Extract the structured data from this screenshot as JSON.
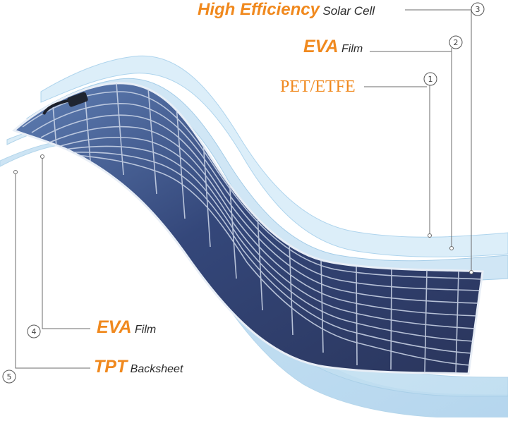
{
  "labels": {
    "high_efficiency": {
      "main": "High Efficiency",
      "sub": "Solar Cell",
      "number": "3"
    },
    "eva_top": {
      "main": "EVA",
      "sub": "Film",
      "number": "2"
    },
    "pet_etfe": {
      "main": "PET/ETFE",
      "number": "1"
    },
    "eva_bottom": {
      "main": "EVA",
      "sub": "Film",
      "number": "4"
    },
    "tpt": {
      "main": "TPT",
      "sub": "Backsheet",
      "number": "5"
    }
  },
  "colors": {
    "accent": "#f0891e",
    "layer_light": "#cfe6f5",
    "layer_mid": "#b4d7ef",
    "cell_dark": "#2c3a63",
    "cell_mid": "#3d5a8f",
    "leader": "#6b6b6b"
  }
}
